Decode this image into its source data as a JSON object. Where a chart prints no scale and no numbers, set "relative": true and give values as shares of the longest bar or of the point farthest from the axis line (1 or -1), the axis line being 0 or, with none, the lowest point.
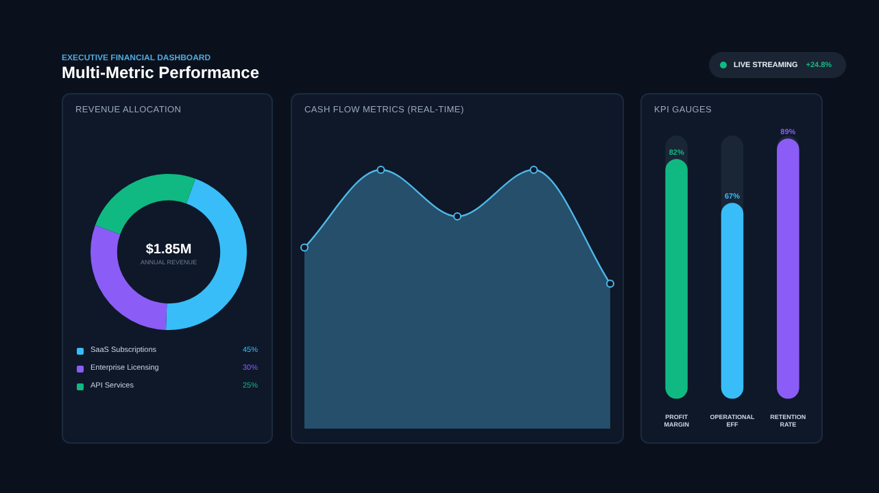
{
  "chart_data": [
    {
      "type": "other",
      "title": "Multi-Metric Performance",
      "subtitle": "EXECUTIVE FINANCIAL DASHBOARD",
      "annotations": [
        "LIVE STREAMING",
        "+24.8%"
      ]
    },
    {
      "type": "donut",
      "title": "REVENUE ALLOCATION",
      "categories": [
        "SaaS Subscriptions",
        "Enterprise Licensing",
        "API Services"
      ],
      "values": [
        45,
        30,
        25
      ],
      "colors": [
        "#38bdf8",
        "#8b5cf6",
        "#10b981"
      ],
      "value_labels": [
        "45%",
        "30%",
        "25%"
      ],
      "legend": "bottom",
      "annotations": [
        "$1.85M",
        "ANNUAL REVENUE"
      ]
    },
    {
      "type": "area",
      "title": "CASH FLOW METRICS (REAL-TIME)",
      "categories": [
        null,
        null,
        null,
        null,
        null
      ],
      "values": [
        0.7,
        1,
        0.82,
        1,
        0.56
      ],
      "color": "#4fb8e8",
      "relative": true,
      "marker": "circle",
      "tick_labels": false,
      "legend": false
    },
    {
      "type": "bar",
      "title": "KPI GAUGES",
      "categories": [
        "PROFIT MARGIN",
        "OPERATIONAL EFF",
        "RETENTION RATE"
      ],
      "values": [
        82,
        67,
        89
      ],
      "colors": [
        "#10b981",
        "#38bdf8",
        "#8b5cf6"
      ],
      "value_labels": [
        "82%",
        "67%",
        "89%"
      ],
      "tick_labels": "x",
      "legend": false
    }
  ]
}
